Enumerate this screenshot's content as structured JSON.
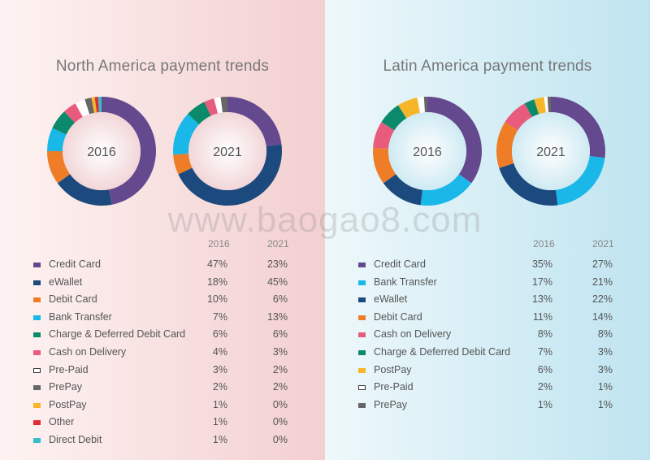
{
  "watermark": "www.baogao8.com",
  "chart_data": [
    {
      "type": "pie",
      "title": "North America payment trends",
      "years": [
        "2016",
        "2021"
      ],
      "categories": [
        "Credit Card",
        "eWallet",
        "Debit Card",
        "Bank Transfer",
        "Charge & Deferred Debit Card",
        "Cash on Delivery",
        "Pre-Paid",
        "PrePay",
        "PostPay",
        "Other",
        "Direct Debit"
      ],
      "colors": [
        "#65498f",
        "#1c4a7e",
        "#ef7d27",
        "#19b8e8",
        "#0b8a6b",
        "#e95b7c",
        "#ffffff",
        "#666666",
        "#f7b52a",
        "#e32b38",
        "#35bfc7"
      ],
      "series": [
        {
          "name": "2016",
          "values": [
            47,
            18,
            10,
            7,
            6,
            4,
            3,
            2,
            1,
            1,
            1
          ],
          "labels": [
            "47%",
            "18%",
            "10%",
            "7%",
            "6%",
            "4%",
            "3%",
            "2%",
            "1%",
            "1%",
            "1%"
          ]
        },
        {
          "name": "2021",
          "values": [
            23,
            45,
            6,
            13,
            6,
            3,
            2,
            2,
            0,
            0,
            0
          ],
          "labels": [
            "23%",
            "45%",
            "6%",
            "13%",
            "6%",
            "3%",
            "2%",
            "2%",
            "0%",
            "0%",
            "0%"
          ]
        }
      ]
    },
    {
      "type": "pie",
      "title": "Latin America payment trends",
      "years": [
        "2016",
        "2021"
      ],
      "categories": [
        "Credit Card",
        "Bank Transfer",
        "eWallet",
        "Debit Card",
        "Cash on Delivery",
        "Charge & Deferred Debit Card",
        "PostPay",
        "Pre-Paid",
        "PrePay"
      ],
      "colors": [
        "#65498f",
        "#19b8e8",
        "#1c4a7e",
        "#ef7d27",
        "#e95b7c",
        "#0b8a6b",
        "#f7b52a",
        "#ffffff",
        "#666666"
      ],
      "series": [
        {
          "name": "2016",
          "values": [
            35,
            17,
            13,
            11,
            8,
            7,
            6,
            2,
            1
          ],
          "labels": [
            "35%",
            "17%",
            "13%",
            "11%",
            "8%",
            "7%",
            "6%",
            "2%",
            "1%"
          ]
        },
        {
          "name": "2021",
          "values": [
            27,
            21,
            22,
            14,
            8,
            3,
            3,
            1,
            1
          ],
          "labels": [
            "27%",
            "21%",
            "22%",
            "14%",
            "8%",
            "3%",
            "3%",
            "1%",
            "1%"
          ]
        }
      ]
    }
  ]
}
